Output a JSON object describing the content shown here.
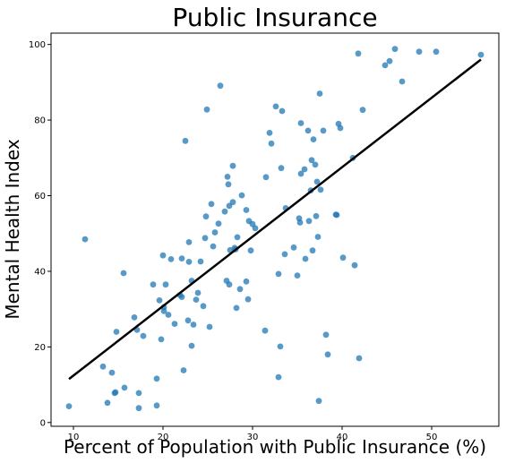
{
  "chart_data": {
    "type": "scatter",
    "title": "Public Insurance",
    "xlabel": "Percent of Population with Public Insurance (%)",
    "ylabel": "Mental Health Index",
    "xlim": [
      7.5,
      57.5
    ],
    "ylim": [
      -1,
      103
    ],
    "xticks": [
      10,
      20,
      30,
      40,
      50
    ],
    "yticks": [
      0,
      20,
      40,
      60,
      80,
      100
    ],
    "grid": false,
    "point_color": "#1f77b4",
    "line_color": "#000000",
    "trend_line": {
      "x": [
        9.5,
        55.5
      ],
      "y": [
        11.5,
        96.0
      ]
    },
    "points": [
      [
        9.5,
        4.3
      ],
      [
        11.3,
        48.5
      ],
      [
        13.3,
        14.8
      ],
      [
        13.8,
        5.2
      ],
      [
        14.3,
        13.2
      ],
      [
        14.6,
        7.8
      ],
      [
        14.7,
        8.0
      ],
      [
        14.8,
        24.0
      ],
      [
        15.6,
        39.5
      ],
      [
        15.7,
        9.2
      ],
      [
        16.8,
        27.8
      ],
      [
        17.1,
        24.5
      ],
      [
        17.3,
        3.8
      ],
      [
        17.3,
        7.8
      ],
      [
        17.8,
        22.9
      ],
      [
        18.9,
        36.5
      ],
      [
        19.3,
        11.6
      ],
      [
        19.3,
        4.5
      ],
      [
        19.6,
        32.3
      ],
      [
        19.8,
        22.0
      ],
      [
        20.0,
        44.2
      ],
      [
        20.1,
        30.5
      ],
      [
        20.1,
        29.5
      ],
      [
        20.3,
        36.5
      ],
      [
        20.6,
        28.5
      ],
      [
        20.9,
        43.2
      ],
      [
        21.3,
        26.1
      ],
      [
        21.9,
        33.7
      ],
      [
        22.1,
        43.4
      ],
      [
        22.1,
        33.2
      ],
      [
        22.3,
        13.8
      ],
      [
        22.5,
        74.5
      ],
      [
        22.8,
        27.0
      ],
      [
        22.9,
        47.7
      ],
      [
        22.9,
        42.5
      ],
      [
        23.2,
        37.5
      ],
      [
        23.2,
        20.3
      ],
      [
        23.4,
        25.9
      ],
      [
        23.7,
        32.5
      ],
      [
        23.9,
        34.3
      ],
      [
        24.2,
        42.6
      ],
      [
        24.5,
        30.8
      ],
      [
        24.7,
        48.8
      ],
      [
        24.8,
        54.5
      ],
      [
        24.9,
        82.8
      ],
      [
        25.2,
        25.3
      ],
      [
        25.4,
        57.8
      ],
      [
        25.6,
        46.6
      ],
      [
        25.8,
        50.3
      ],
      [
        26.2,
        52.6
      ],
      [
        26.4,
        89.1
      ],
      [
        26.9,
        55.8
      ],
      [
        27.1,
        37.5
      ],
      [
        27.2,
        65.0
      ],
      [
        27.3,
        63.0
      ],
      [
        27.4,
        36.5
      ],
      [
        27.4,
        57.3
      ],
      [
        27.5,
        45.6
      ],
      [
        27.8,
        58.3
      ],
      [
        27.8,
        67.9
      ],
      [
        28.0,
        46.2
      ],
      [
        28.1,
        45.8
      ],
      [
        28.2,
        30.3
      ],
      [
        28.3,
        49.0
      ],
      [
        28.6,
        35.3
      ],
      [
        28.8,
        60.1
      ],
      [
        29.3,
        56.2
      ],
      [
        29.3,
        37.3
      ],
      [
        29.5,
        32.6
      ],
      [
        29.6,
        53.3
      ],
      [
        29.8,
        45.5
      ],
      [
        30.0,
        52.5
      ],
      [
        30.3,
        51.4
      ],
      [
        31.4,
        24.3
      ],
      [
        31.5,
        64.9
      ],
      [
        31.9,
        76.6
      ],
      [
        32.1,
        73.8
      ],
      [
        32.6,
        83.6
      ],
      [
        32.9,
        39.3
      ],
      [
        32.9,
        12.0
      ],
      [
        33.1,
        20.1
      ],
      [
        33.2,
        67.3
      ],
      [
        33.3,
        82.4
      ],
      [
        33.6,
        44.5
      ],
      [
        33.7,
        56.7
      ],
      [
        34.6,
        46.3
      ],
      [
        35.0,
        38.9
      ],
      [
        35.2,
        54.0
      ],
      [
        35.3,
        52.9
      ],
      [
        35.4,
        65.8
      ],
      [
        35.4,
        79.2
      ],
      [
        35.8,
        67.0
      ],
      [
        35.9,
        43.3
      ],
      [
        36.2,
        77.2
      ],
      [
        36.3,
        53.3
      ],
      [
        36.5,
        61.4
      ],
      [
        36.6,
        69.4
      ],
      [
        36.7,
        45.5
      ],
      [
        36.8,
        74.9
      ],
      [
        37.0,
        68.2
      ],
      [
        37.1,
        54.6
      ],
      [
        37.2,
        63.7
      ],
      [
        37.3,
        49.1
      ],
      [
        37.4,
        5.7
      ],
      [
        37.5,
        87.0
      ],
      [
        37.6,
        61.6
      ],
      [
        37.9,
        77.2
      ],
      [
        38.2,
        23.2
      ],
      [
        38.4,
        18.0
      ],
      [
        39.3,
        55.0
      ],
      [
        39.4,
        54.9
      ],
      [
        39.6,
        79.0
      ],
      [
        39.8,
        77.9
      ],
      [
        40.1,
        43.6
      ],
      [
        41.2,
        70.0
      ],
      [
        41.4,
        41.6
      ],
      [
        41.8,
        97.6
      ],
      [
        41.9,
        17.0
      ],
      [
        42.3,
        82.7
      ],
      [
        44.8,
        94.5
      ],
      [
        45.3,
        95.6
      ],
      [
        45.9,
        98.8
      ],
      [
        46.7,
        90.2
      ],
      [
        48.6,
        98.1
      ],
      [
        50.5,
        98.1
      ],
      [
        55.5,
        97.3
      ]
    ]
  }
}
